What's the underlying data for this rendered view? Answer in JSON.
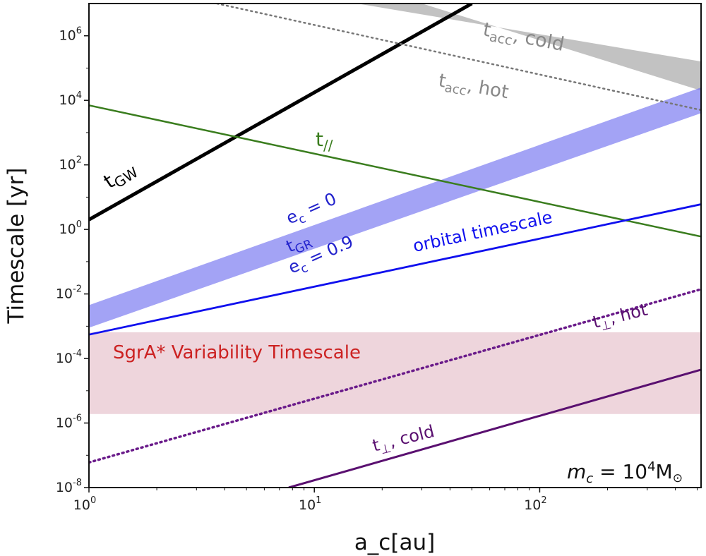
{
  "chart_data": {
    "type": "line",
    "title": "",
    "xlabel": "a_c[au]",
    "ylabel": "Timescale [yr]",
    "xscale": "log",
    "yscale": "log",
    "xlim": [
      1,
      520
    ],
    "ylim": [
      1e-08,
      10000000.0
    ],
    "grid": false,
    "x_ticks": [
      {
        "value": 1,
        "base": "10",
        "exp": "0"
      },
      {
        "value": 10,
        "base": "10",
        "exp": "1"
      },
      {
        "value": 100,
        "base": "10",
        "exp": "2"
      }
    ],
    "y_ticks": [
      {
        "value": 1e-08,
        "base": "10",
        "exp": "-8"
      },
      {
        "value": 1e-06,
        "base": "10",
        "exp": "-6"
      },
      {
        "value": 0.0001,
        "base": "10",
        "exp": "-4"
      },
      {
        "value": 0.01,
        "base": "10",
        "exp": "-2"
      },
      {
        "value": 1,
        "base": "10",
        "exp": "0"
      },
      {
        "value": 100,
        "base": "10",
        "exp": "2"
      },
      {
        "value": 10000,
        "base": "10",
        "exp": "4"
      },
      {
        "value": 1000000,
        "base": "10",
        "exp": "6"
      }
    ],
    "mass_label": {
      "prefix": "m",
      "prefix_sub": "c",
      "rest": " = 10",
      "sup": "4",
      "unit": "M",
      "unit_sub": "⊙"
    },
    "series": [
      {
        "id": "tgw",
        "name": "t_GW",
        "style": "solid",
        "color": "#000000",
        "width": 5,
        "x": [
          1,
          50
        ],
        "y": [
          2,
          10000000.0
        ]
      },
      {
        "id": "tpar",
        "name": "t_||",
        "style": "solid",
        "color": "#3a7d1e",
        "width": 2.5,
        "x": [
          1,
          520
        ],
        "y": [
          7000,
          0.6
        ]
      },
      {
        "id": "orb",
        "name": "orbital timescale",
        "style": "solid",
        "color": "#1010ee",
        "width": 2.8,
        "x": [
          1,
          520
        ],
        "y": [
          0.00055,
          6
        ]
      },
      {
        "id": "tacc_hot",
        "name": "t_acc, hot",
        "style": "dotted",
        "color": "#777777",
        "width": 2.5,
        "x": [
          3.7,
          520
        ],
        "y": [
          10000000.0,
          5000
        ]
      },
      {
        "id": "tperp_hot",
        "name": "t_perp, hot",
        "style": "dotted",
        "color": "#6a1b8a",
        "width": 3.5,
        "x": [
          1,
          520
        ],
        "y": [
          6e-08,
          0.014
        ]
      },
      {
        "id": "tperp_cold",
        "name": "t_perp, cold",
        "style": "solid",
        "color": "#5a1070",
        "width": 3,
        "x": [
          7.7,
          520
        ],
        "y": [
          1e-08,
          4.5e-05
        ]
      }
    ],
    "bands": [
      {
        "id": "tacc_cold",
        "name": "t_acc, cold",
        "color": "#b3b3b3",
        "opacity": 0.8,
        "x": [
          15.5,
          520
        ],
        "y_low": [
          10000000.0,
          20000
        ],
        "y_high": [
          10000000.0,
          160000
        ],
        "x_start_low": 30
      },
      {
        "id": "tgr",
        "name": "t_GR",
        "color": "#6666ee",
        "opacity": 0.6,
        "x": [
          1,
          520
        ],
        "y_low": [
          0.0009,
          4000
        ],
        "y_high": [
          0.0045,
          25000
        ]
      }
    ],
    "spans": [
      {
        "id": "sgra",
        "name": "SgrA* Variability Timescale",
        "color": "#eed5dc",
        "y_low": 1.9e-06,
        "y_high": 0.00065
      }
    ],
    "annotations": {
      "tgw": {
        "main": "t",
        "sub": "GW"
      },
      "tpar": {
        "main": "t",
        "sub": "//"
      },
      "orb": {
        "text": "orbital timescale"
      },
      "tacc_cold": {
        "main": "t",
        "sub": "acc",
        "rest": ", cold"
      },
      "tacc_hot": {
        "main": "t",
        "sub": "acc",
        "rest": ", hot"
      },
      "ec0": {
        "main": "e",
        "sub": "c",
        "rest": " = 0"
      },
      "tgr": {
        "main": "t",
        "sub": "GR"
      },
      "ec09": {
        "main": "e",
        "sub": "c",
        "rest": " = 0.9"
      },
      "tperp_hot": {
        "main": "t",
        "sub": "⊥",
        "rest": ", hot"
      },
      "tperp_cold": {
        "main": "t",
        "sub": "⊥",
        "rest": ", cold"
      },
      "sgra": {
        "text": "SgrA* Variability Timescale"
      }
    },
    "colors": {
      "tgw": "#000000",
      "tpar": "#3a7d1e",
      "orb": "#1010ee",
      "tacc": "#888888",
      "tgr": "#2222cc",
      "tperp": "#5a1070",
      "sgra": "#cc2222"
    }
  }
}
